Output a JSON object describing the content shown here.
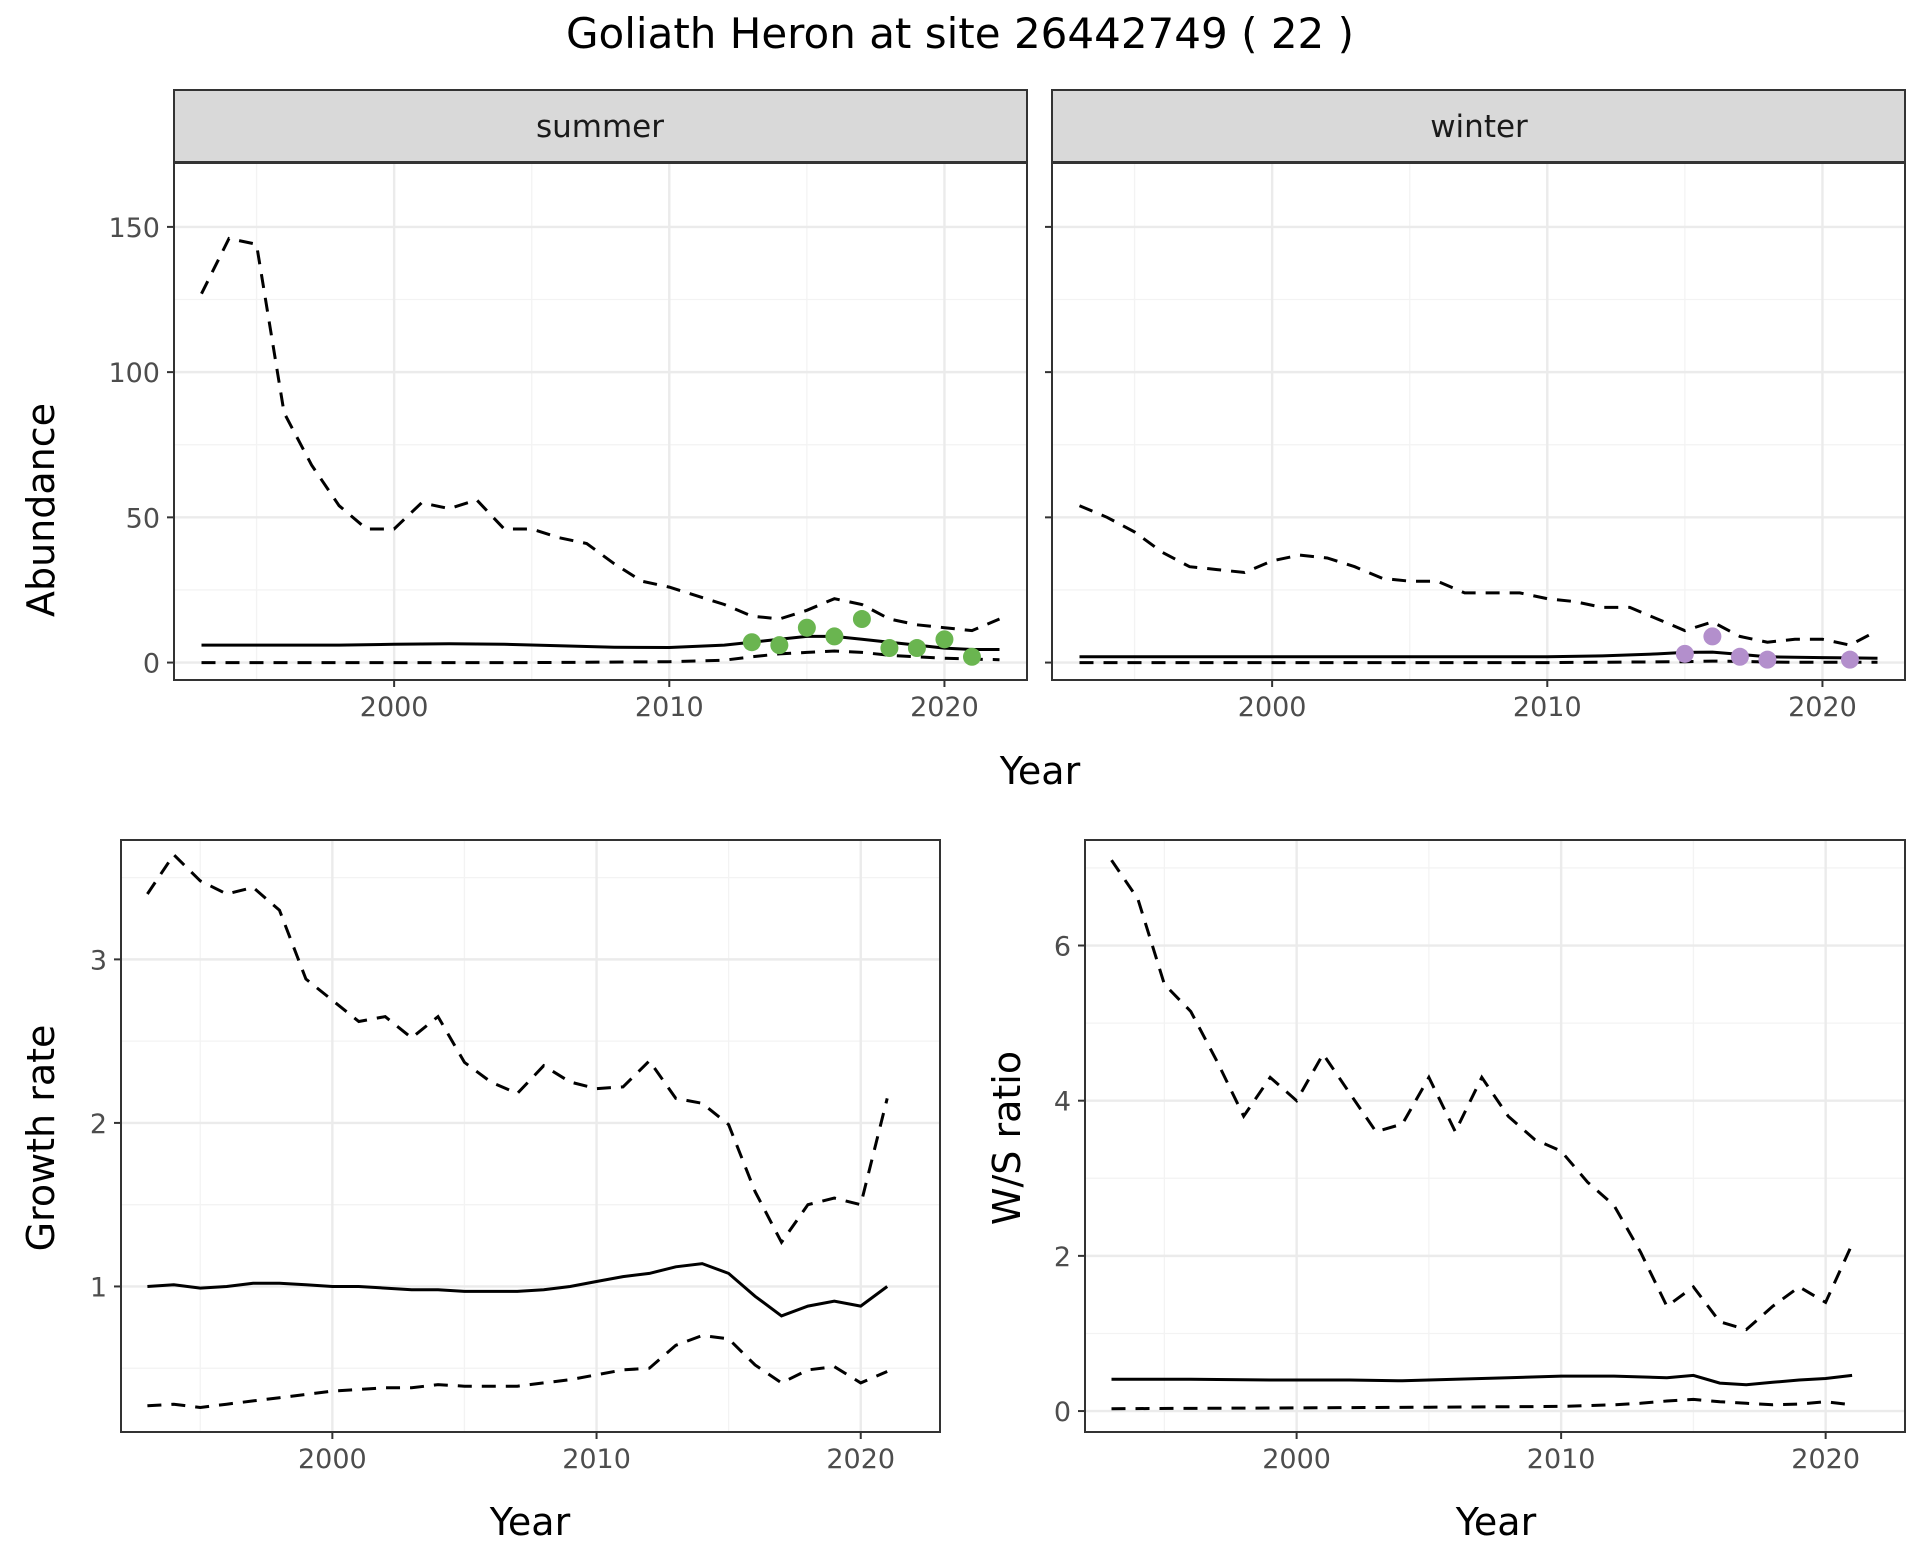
{
  "title": "Goliath Heron at site 26442749 ( 22 )",
  "colors": {
    "summer_points": "#6ab550",
    "winter_points": "#b38fcc",
    "lines": "#000000",
    "strip": "#d9d9d9"
  },
  "chart_data": [
    {
      "type": "line",
      "id": "abundance-summer",
      "facet": "summer",
      "ylabel": "Abundance",
      "xlabel": "Year",
      "xlim": [
        1992,
        2023
      ],
      "ylim": [
        -6,
        172
      ],
      "x_ticks": [
        2000,
        2010,
        2020
      ],
      "y_ticks": [
        0,
        50,
        100,
        150
      ],
      "grid": true,
      "series": [
        {
          "role": "mean",
          "style": "solid",
          "x": [
            1993,
            1995,
            1998,
            2000,
            2002,
            2004,
            2006,
            2008,
            2010,
            2012,
            2014,
            2015,
            2016,
            2017,
            2018,
            2019,
            2020,
            2021,
            2022
          ],
          "y": [
            6,
            6,
            6,
            6.3,
            6.5,
            6.3,
            5.8,
            5.3,
            5.2,
            6,
            8,
            9,
            9,
            8,
            7,
            6,
            5,
            4.5,
            4.5
          ]
        },
        {
          "role": "upper",
          "style": "dashed",
          "x": [
            1993,
            1994,
            1995,
            1996,
            1997,
            1998,
            1999,
            2000,
            2001,
            2002,
            2003,
            2004,
            2005,
            2006,
            2007,
            2008,
            2009,
            2010,
            2011,
            2012,
            2013,
            2014,
            2015,
            2016,
            2017,
            2018,
            2019,
            2020,
            2021,
            2022
          ],
          "y": [
            127,
            146,
            144,
            86,
            68,
            54,
            46,
            46,
            55,
            53,
            56,
            46,
            46,
            43,
            41,
            34,
            28,
            26,
            23,
            20,
            16,
            15,
            18,
            22,
            20,
            15,
            13,
            12,
            11,
            15
          ]
        },
        {
          "role": "lower",
          "style": "dashed",
          "x": [
            1993,
            2000,
            2005,
            2010,
            2012,
            2013,
            2014,
            2015,
            2016,
            2017,
            2018,
            2019,
            2020,
            2021,
            2022
          ],
          "y": [
            0,
            0,
            0,
            0.3,
            0.8,
            2,
            3,
            3.5,
            4,
            3.5,
            2.5,
            2,
            1.5,
            1.2,
            1
          ]
        },
        {
          "role": "observed",
          "style": "points",
          "color": "#6ab550",
          "x": [
            2013,
            2014,
            2015,
            2016,
            2017,
            2018,
            2019,
            2020,
            2021
          ],
          "y": [
            7,
            6,
            12,
            9,
            15,
            5,
            5,
            8,
            2
          ]
        }
      ]
    },
    {
      "type": "line",
      "id": "abundance-winter",
      "facet": "winter",
      "ylabel": "",
      "xlabel": "Year",
      "xlim": [
        1992,
        2023
      ],
      "ylim": [
        -6,
        172
      ],
      "x_ticks": [
        2000,
        2010,
        2020
      ],
      "y_ticks": [
        0,
        50,
        100,
        150
      ],
      "grid": true,
      "series": [
        {
          "role": "mean",
          "style": "solid",
          "x": [
            1993,
            2000,
            2005,
            2010,
            2012,
            2014,
            2015,
            2016,
            2017,
            2018,
            2019,
            2020,
            2021,
            2022
          ],
          "y": [
            2,
            2,
            2,
            2,
            2.3,
            3,
            3.5,
            3.6,
            2.8,
            2,
            1.8,
            1.7,
            1.6,
            1.5
          ]
        },
        {
          "role": "upper",
          "style": "dashed",
          "x": [
            1993,
            1994,
            1995,
            1996,
            1997,
            1998,
            1999,
            2000,
            2001,
            2002,
            2003,
            2004,
            2005,
            2006,
            2007,
            2008,
            2009,
            2010,
            2011,
            2012,
            2013,
            2014,
            2015,
            2016,
            2017,
            2018,
            2019,
            2020,
            2021,
            2022
          ],
          "y": [
            54,
            50,
            45,
            38,
            33,
            32,
            31,
            35,
            37,
            36,
            33,
            29,
            28,
            28,
            24,
            24,
            24,
            22,
            21,
            19,
            19,
            15,
            11,
            14,
            9,
            7,
            8,
            8,
            6,
            11
          ]
        },
        {
          "role": "lower",
          "style": "dashed",
          "x": [
            1993,
            2010,
            2015,
            2016,
            2017,
            2018,
            2019,
            2020,
            2021,
            2022
          ],
          "y": [
            0,
            0,
            0.3,
            0.5,
            0.4,
            0.2,
            0.1,
            0.1,
            0.1,
            0.1
          ]
        },
        {
          "role": "observed",
          "style": "points",
          "color": "#b38fcc",
          "x": [
            2015,
            2016,
            2017,
            2018,
            2021
          ],
          "y": [
            3,
            9,
            2,
            1,
            1
          ]
        }
      ]
    },
    {
      "type": "line",
      "id": "growth-rate",
      "ylabel": "Growth rate",
      "xlabel": "Year",
      "xlim": [
        1992,
        2023
      ],
      "ylim": [
        0.11,
        3.73
      ],
      "x_ticks": [
        2000,
        2010,
        2020
      ],
      "y_ticks": [
        1,
        2,
        3
      ],
      "grid": true,
      "series": [
        {
          "role": "mean",
          "style": "solid",
          "x": [
            1993,
            1994,
            1995,
            1996,
            1997,
            1998,
            1999,
            2000,
            2001,
            2002,
            2003,
            2004,
            2005,
            2006,
            2007,
            2008,
            2009,
            2010,
            2011,
            2012,
            2013,
            2014,
            2015,
            2016,
            2017,
            2018,
            2019,
            2020,
            2021
          ],
          "y": [
            1.0,
            1.01,
            0.99,
            1.0,
            1.02,
            1.02,
            1.01,
            1.0,
            1.0,
            0.99,
            0.98,
            0.98,
            0.97,
            0.97,
            0.97,
            0.98,
            1.0,
            1.03,
            1.06,
            1.08,
            1.12,
            1.14,
            1.08,
            0.94,
            0.82,
            0.88,
            0.91,
            0.88,
            1.0
          ]
        },
        {
          "role": "upper",
          "style": "dashed",
          "x": [
            1993,
            1994,
            1995,
            1996,
            1997,
            1998,
            1999,
            2000,
            2001,
            2002,
            2003,
            2004,
            2005,
            2006,
            2007,
            2008,
            2009,
            2010,
            2011,
            2012,
            2013,
            2014,
            2015,
            2016,
            2017,
            2018,
            2019,
            2020,
            2021
          ],
          "y": [
            3.4,
            3.64,
            3.48,
            3.4,
            3.44,
            3.3,
            2.88,
            2.75,
            2.62,
            2.65,
            2.52,
            2.65,
            2.37,
            2.25,
            2.18,
            2.35,
            2.25,
            2.21,
            2.22,
            2.38,
            2.15,
            2.12,
            1.99,
            1.58,
            1.27,
            1.5,
            1.54,
            1.5,
            2.15
          ]
        },
        {
          "role": "lower",
          "style": "dashed",
          "x": [
            1993,
            1994,
            1995,
            1996,
            1997,
            1998,
            1999,
            2000,
            2001,
            2002,
            2003,
            2004,
            2005,
            2006,
            2007,
            2008,
            2009,
            2010,
            2011,
            2012,
            2013,
            2014,
            2015,
            2016,
            2017,
            2018,
            2019,
            2020,
            2021
          ],
          "y": [
            0.27,
            0.28,
            0.26,
            0.28,
            0.3,
            0.32,
            0.34,
            0.36,
            0.37,
            0.38,
            0.38,
            0.4,
            0.39,
            0.39,
            0.39,
            0.41,
            0.43,
            0.46,
            0.49,
            0.5,
            0.64,
            0.7,
            0.68,
            0.52,
            0.41,
            0.49,
            0.51,
            0.41,
            0.48
          ]
        }
      ]
    },
    {
      "type": "line",
      "id": "ws-ratio",
      "ylabel": "W/S ratio",
      "xlabel": "Year",
      "xlim": [
        1992,
        2023
      ],
      "ylim": [
        -0.27,
        7.36
      ],
      "x_ticks": [
        2000,
        2010,
        2020
      ],
      "y_ticks": [
        0,
        2,
        4,
        6
      ],
      "grid": true,
      "series": [
        {
          "role": "mean",
          "style": "solid",
          "x": [
            1993,
            1996,
            1999,
            2002,
            2004,
            2006,
            2008,
            2010,
            2012,
            2014,
            2015,
            2016,
            2017,
            2018,
            2019,
            2020,
            2021
          ],
          "y": [
            0.41,
            0.41,
            0.4,
            0.4,
            0.39,
            0.41,
            0.43,
            0.45,
            0.45,
            0.43,
            0.46,
            0.36,
            0.34,
            0.37,
            0.4,
            0.42,
            0.46
          ]
        },
        {
          "role": "upper",
          "style": "dashed",
          "x": [
            1993,
            1994,
            1995,
            1996,
            1997,
            1998,
            1999,
            2000,
            2001,
            2002,
            2003,
            2004,
            2005,
            2006,
            2007,
            2008,
            2009,
            2010,
            2011,
            2012,
            2013,
            2014,
            2015,
            2016,
            2017,
            2018,
            2019,
            2020,
            2021
          ],
          "y": [
            7.1,
            6.6,
            5.5,
            5.15,
            4.5,
            3.8,
            4.3,
            4.0,
            4.6,
            4.1,
            3.6,
            3.7,
            4.3,
            3.6,
            4.3,
            3.8,
            3.5,
            3.35,
            2.95,
            2.65,
            2.05,
            1.35,
            1.6,
            1.15,
            1.05,
            1.35,
            1.6,
            1.4,
            2.15
          ]
        },
        {
          "role": "lower",
          "style": "dashed",
          "x": [
            1993,
            2000,
            2005,
            2010,
            2012,
            2013,
            2014,
            2015,
            2016,
            2017,
            2018,
            2019,
            2020,
            2021
          ],
          "y": [
            0.03,
            0.04,
            0.05,
            0.06,
            0.08,
            0.1,
            0.13,
            0.15,
            0.12,
            0.1,
            0.08,
            0.09,
            0.12,
            0.08
          ]
        }
      ]
    }
  ]
}
